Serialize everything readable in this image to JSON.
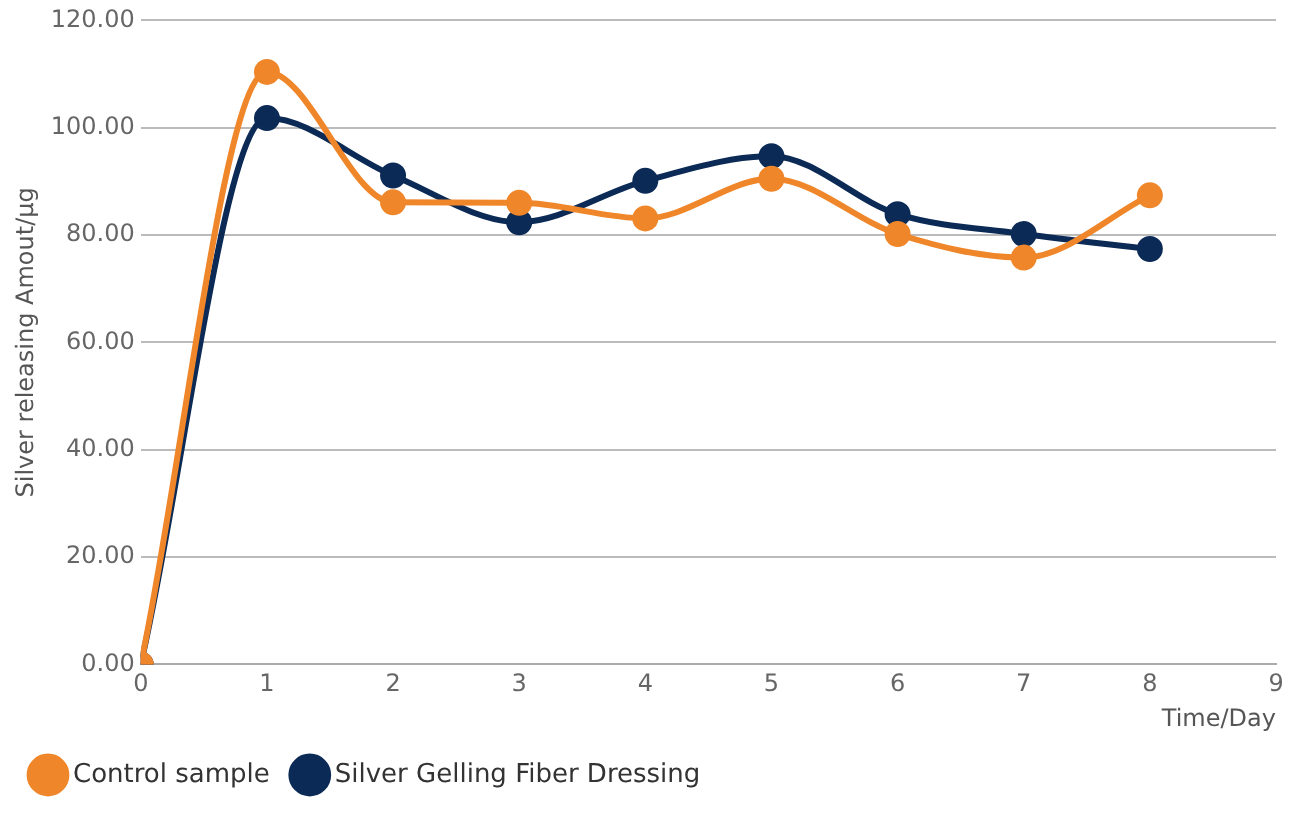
{
  "chart_data": {
    "type": "line",
    "xlabel": "Time/Day",
    "ylabel": "Silver releasing Amout/µg",
    "x": [
      0,
      1,
      2,
      3,
      4,
      5,
      6,
      7,
      8
    ],
    "series": [
      {
        "name": "Control sample",
        "color": "#f0862a",
        "values": [
          0,
          110.4,
          86.1,
          86,
          83.1,
          90.5,
          80.2,
          75.8,
          87.4
        ]
      },
      {
        "name": "Silver Gelling Fiber Dressing",
        "color": "#0b2a55",
        "values": [
          0,
          101.8,
          91.1,
          82.4,
          90.1,
          94.7,
          83.9,
          80.2,
          77.4
        ]
      }
    ],
    "xlim": [
      0,
      9
    ],
    "xticks": [
      0,
      1,
      2,
      3,
      4,
      5,
      6,
      7,
      8,
      9
    ],
    "ylim": [
      0,
      120
    ],
    "yticks": [
      {
        "value": 0,
        "label": "0.00"
      },
      {
        "value": 20,
        "label": "20.00"
      },
      {
        "value": 40,
        "label": "40.00"
      },
      {
        "value": 60,
        "label": "60.00"
      },
      {
        "value": 80,
        "label": "80.00"
      },
      {
        "value": 100,
        "label": "100.00"
      },
      {
        "value": 120,
        "label": "120.00"
      }
    ],
    "grid": "y",
    "legend": "bottom",
    "marker": "circle",
    "line_style": "solid"
  }
}
